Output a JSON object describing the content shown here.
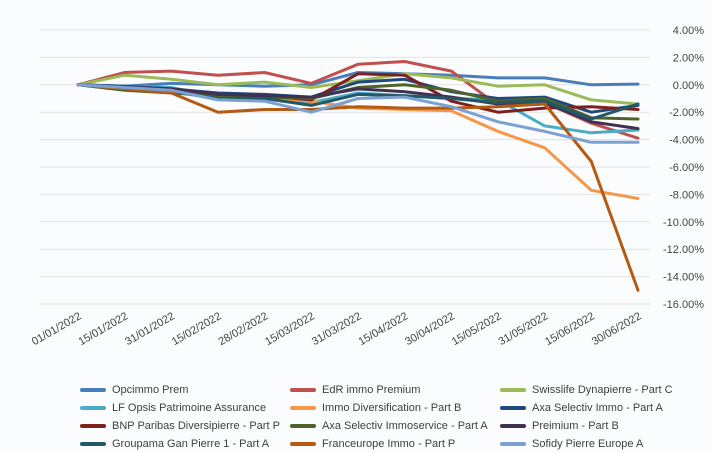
{
  "chart_data": {
    "type": "line",
    "title": "",
    "xlabel": "",
    "ylabel": "",
    "x": [
      "01/01/2022",
      "15/01/2022",
      "31/01/2022",
      "15/02/2022",
      "28/02/2022",
      "15/03/2022",
      "31/03/2022",
      "15/04/2022",
      "30/04/2022",
      "15/05/2022",
      "31/05/2022",
      "15/06/2022",
      "30/06/2022"
    ],
    "ylim": [
      -16,
      4
    ],
    "yticks": [
      4,
      2,
      0,
      -2,
      -4,
      -6,
      -8,
      -10,
      -12,
      -14,
      -16
    ],
    "ytick_labels": [
      "4.00%",
      "2.00%",
      "0.00%",
      "-2.00%",
      "-4.00%",
      "-6.00%",
      "-8.00%",
      "-10.00%",
      "-12.00%",
      "-14.00%",
      "-16.00%"
    ],
    "grid": true,
    "legend_position": "bottom",
    "series": [
      {
        "name": "Opcimmo Prem",
        "color": "#4a7ebb",
        "values": [
          0,
          -0.1,
          0.1,
          0.0,
          -0.1,
          0.0,
          0.9,
          0.8,
          0.7,
          0.5,
          0.5,
          0.0,
          0.05
        ]
      },
      {
        "name": "EdR immo Premium",
        "color": "#c0504d",
        "values": [
          0,
          0.9,
          1.0,
          0.7,
          0.9,
          0.1,
          1.5,
          1.7,
          1.0,
          -1.5,
          -1.3,
          -2.8,
          -3.9
        ]
      },
      {
        "name": "Swisslife Dynapierre - Part C",
        "color": "#9bbb59",
        "values": [
          0,
          0.7,
          0.4,
          0.0,
          0.2,
          -0.2,
          0.3,
          0.8,
          0.5,
          -0.1,
          0.0,
          -1.1,
          -1.4
        ]
      },
      {
        "name": "LF Opsis Patrimoine Assurance",
        "color": "#4bacc6",
        "values": [
          0,
          -0.1,
          -0.2,
          -0.9,
          -0.9,
          -1.3,
          -0.6,
          -0.8,
          -1.0,
          -1.1,
          -3.0,
          -3.5,
          -3.3
        ]
      },
      {
        "name": "Immo Diversification - Part B",
        "color": "#f79646",
        "values": [
          0,
          -0.2,
          -0.5,
          -0.8,
          -0.9,
          -1.2,
          -1.7,
          -1.8,
          -1.9,
          -3.4,
          -4.6,
          -7.7,
          -8.3
        ]
      },
      {
        "name": "Axa Selectiv Immo - Part A",
        "color": "#1f497d",
        "values": [
          0,
          -0.1,
          -0.3,
          -0.6,
          -0.7,
          -0.9,
          0.2,
          0.4,
          -0.5,
          -1.0,
          -0.9,
          -2.0,
          -1.5
        ]
      },
      {
        "name": "BNP Paribas Diversipierre - Part P",
        "color": "#7f2020",
        "values": [
          0,
          -0.2,
          -0.4,
          -0.7,
          -0.8,
          -1.1,
          0.8,
          0.7,
          -1.2,
          -2.0,
          -1.7,
          -1.6,
          -1.8
        ]
      },
      {
        "name": "Axa Selectiv Immoservice - Part A",
        "color": "#4f6228",
        "values": [
          0,
          -0.4,
          -0.6,
          -0.8,
          -0.9,
          -1.0,
          -0.2,
          0.0,
          -0.4,
          -1.2,
          -1.0,
          -2.4,
          -2.5
        ]
      },
      {
        "name": "Preimium - Part B",
        "color": "#403151",
        "values": [
          0,
          -0.2,
          -0.3,
          -0.7,
          -0.8,
          -0.9,
          -0.3,
          -0.5,
          -0.9,
          -1.4,
          -1.3,
          -2.7,
          -3.2
        ]
      },
      {
        "name": "Groupama Gan Pierre 1 - Part A",
        "color": "#215968",
        "values": [
          0,
          -0.3,
          -0.5,
          -1.0,
          -1.0,
          -1.5,
          -0.7,
          -0.8,
          -1.0,
          -1.3,
          -1.2,
          -2.5,
          -1.4
        ]
      },
      {
        "name": "Franceurope Immo - Part P",
        "color": "#b55a12",
        "values": [
          0,
          -0.3,
          -0.6,
          -2.0,
          -1.8,
          -1.8,
          -1.6,
          -1.7,
          -1.7,
          -1.6,
          -1.4,
          -5.6,
          -15.0
        ]
      },
      {
        "name": "Sofidy Pierre Europe A",
        "color": "#7ba0d2",
        "values": [
          0,
          -0.2,
          -0.4,
          -1.1,
          -1.2,
          -2.0,
          -1.0,
          -0.9,
          -1.6,
          -2.7,
          -3.4,
          -4.2,
          -4.2
        ]
      }
    ]
  }
}
